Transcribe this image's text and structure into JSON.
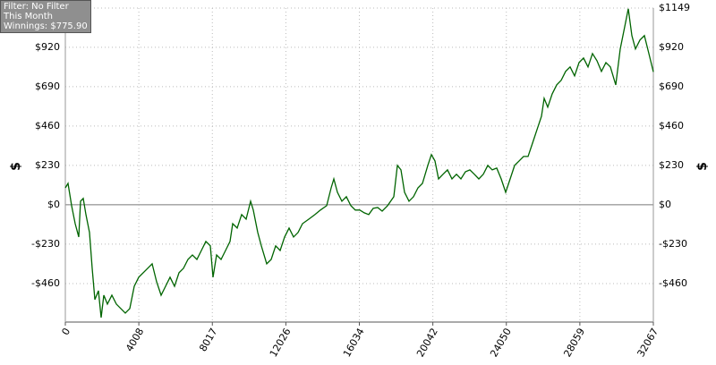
{
  "chart_data": {
    "type": "line",
    "y_label": "$",
    "info_lines": [
      "Filter: No Filter",
      "This Month",
      "Winnings: $775.90"
    ],
    "xlim": [
      0,
      32067
    ],
    "xticks": [
      0,
      4008,
      8017,
      12026,
      16034,
      20042,
      24050,
      28059,
      32067
    ],
    "ylim": [
      -685,
      1149
    ],
    "yticks": [
      {
        "value": -460,
        "label": "-$460"
      },
      {
        "value": -230,
        "label": "-$230"
      },
      {
        "value": 0,
        "label": "$0"
      },
      {
        "value": 230,
        "label": "$230"
      },
      {
        "value": 460,
        "label": "$460"
      },
      {
        "value": 690,
        "label": "$690"
      },
      {
        "value": 920,
        "label": "$920"
      },
      {
        "value": 1149,
        "label": "$1149"
      }
    ],
    "grid": true,
    "series": [
      {
        "color": "#006400",
        "x": [
          0,
          146,
          342,
          537,
          732,
          830,
          976,
          1123,
          1318,
          1464,
          1610,
          1806,
          1952,
          2098,
          2294,
          2538,
          2782,
          3026,
          3270,
          3514,
          3758,
          4002,
          4490,
          4734,
          4978,
          5222,
          5466,
          5710,
          5954,
          6198,
          6442,
          6686,
          6930,
          7174,
          7418,
          7662,
          7906,
          8053,
          8248,
          8492,
          8736,
          8980,
          9127,
          9371,
          9615,
          9859,
          10103,
          10250,
          10494,
          10689,
          10982,
          11226,
          11470,
          11714,
          11958,
          12202,
          12446,
          12690,
          12934,
          13275,
          13617,
          13910,
          14252,
          14496,
          14643,
          14838,
          15082,
          15326,
          15570,
          15814,
          16059,
          16303,
          16547,
          16791,
          17035,
          17279,
          17572,
          17914,
          18109,
          18304,
          18499,
          18744,
          18988,
          19232,
          19476,
          19769,
          19964,
          20159,
          20354,
          20598,
          20842,
          21086,
          21330,
          21574,
          21818,
          22062,
          22306,
          22550,
          22794,
          23038,
          23282,
          23526,
          23770,
          24014,
          24258,
          24502,
          24746,
          24990,
          25234,
          25478,
          25722,
          25966,
          26113,
          26308,
          26552,
          26796,
          27040,
          27284,
          27528,
          27772,
          28016,
          28260,
          28504,
          28748,
          28992,
          29236,
          29480,
          29724,
          30017,
          30261,
          30505,
          30701,
          30896,
          31091,
          31335,
          31579,
          31823,
          32067
        ],
        "values": [
          99,
          125,
          -5,
          -110,
          -188,
          21,
          37,
          -57,
          -162,
          -371,
          -554,
          -502,
          -659,
          -528,
          -580,
          -528,
          -580,
          -606,
          -632,
          -606,
          -476,
          -423,
          -371,
          -345,
          -450,
          -528,
          -476,
          -423,
          -476,
          -397,
          -371,
          -319,
          -293,
          -319,
          -267,
          -214,
          -240,
          -423,
          -293,
          -319,
          -267,
          -214,
          -110,
          -136,
          -57,
          -84,
          21,
          -31,
          -162,
          -240,
          -345,
          -319,
          -240,
          -267,
          -188,
          -136,
          -188,
          -162,
          -110,
          -84,
          -57,
          -31,
          -5,
          99,
          151,
          73,
          21,
          47,
          -5,
          -31,
          -31,
          -47,
          -57,
          -21,
          -16,
          -37,
          -5,
          47,
          230,
          204,
          73,
          21,
          47,
          99,
          125,
          230,
          293,
          256,
          151,
          178,
          204,
          151,
          178,
          151,
          193,
          204,
          178,
          151,
          178,
          230,
          204,
          214,
          151,
          73,
          151,
          230,
          256,
          282,
          282,
          360,
          439,
          517,
          622,
          570,
          648,
          700,
          727,
          779,
          805,
          753,
          831,
          857,
          805,
          883,
          841,
          779,
          831,
          805,
          700,
          910,
          1040,
          1145,
          988,
          910,
          962,
          988,
          883,
          775.9
        ]
      }
    ]
  }
}
